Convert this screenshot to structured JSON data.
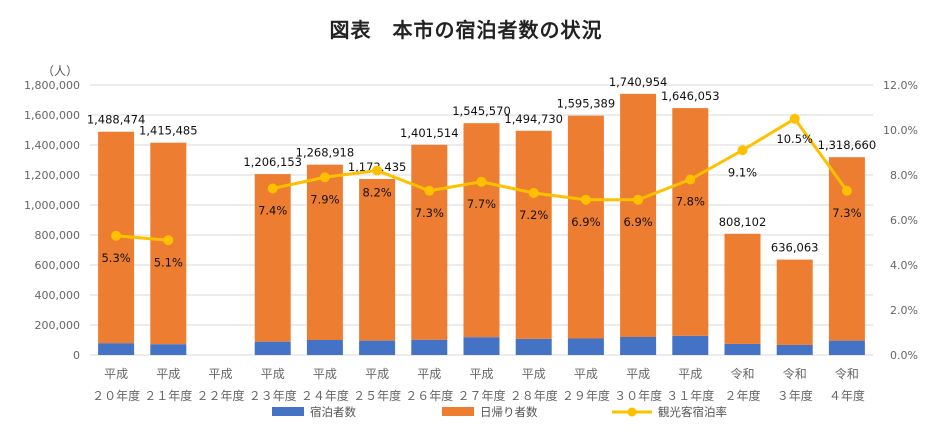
{
  "title": "図表　本市の宿泊者数の状況",
  "chart_data": {
    "type": "bar",
    "stacked": true,
    "unit_label": "（人）",
    "categories": [
      [
        "平成",
        "２０年度"
      ],
      [
        "平成",
        "２１年度"
      ],
      [
        "平成",
        "２２年度"
      ],
      [
        "平成",
        "２３年度"
      ],
      [
        "平成",
        "２４年度"
      ],
      [
        "平成",
        "２５年度"
      ],
      [
        "平成",
        "２６年度"
      ],
      [
        "平成",
        "２７年度"
      ],
      [
        "平成",
        "２８年度"
      ],
      [
        "平成",
        "２９年度"
      ],
      [
        "平成",
        "３０年度"
      ],
      [
        "平成",
        "３１年度"
      ],
      [
        "令和",
        "２年度"
      ],
      [
        "令和",
        "３年度"
      ],
      [
        "令和",
        "４年度"
      ]
    ],
    "series": [
      {
        "name": "宿泊者数",
        "axis": "left",
        "color": "#4472C4",
        "values": [
          79000,
          72000,
          null,
          89000,
          100000,
          96000,
          102000,
          119000,
          108000,
          110000,
          120000,
          128000,
          74000,
          67000,
          96000
        ]
      },
      {
        "name": "日帰り者数",
        "axis": "left",
        "color": "#ED7D31",
        "values": [
          1409474,
          1343485,
          null,
          1117153,
          1168918,
          1077435,
          1299514,
          1426570,
          1386730,
          1485389,
          1620954,
          1518053,
          734102,
          569063,
          1222660
        ]
      },
      {
        "name": "観光客宿泊率",
        "axis": "right",
        "type": "line",
        "color": "#FFC000",
        "values": [
          5.3,
          5.1,
          null,
          7.4,
          7.9,
          8.2,
          7.3,
          7.7,
          7.2,
          6.9,
          6.9,
          7.8,
          9.1,
          10.5,
          7.3
        ]
      }
    ],
    "total_labels": [
      "1,488,474",
      "1,415,485",
      "",
      "1,206,153",
      "1,268,918",
      "1,173,435",
      "1,401,514",
      "1,545,570",
      "1,494,730",
      "1,595,389",
      "1,740,954",
      "1,646,053",
      "808,102",
      "636,063",
      "1,318,660"
    ],
    "rate_labels": [
      "5.3%",
      "5.1%",
      "",
      "7.4%",
      "7.9%",
      "8.2%",
      "7.3%",
      "7.7%",
      "7.2%",
      "6.9%",
      "6.9%",
      "7.8%",
      "9.1%",
      "10.5%",
      "7.3%"
    ],
    "ylim_left": [
      0,
      1800000
    ],
    "yticks_left": [
      "0",
      "200,000",
      "400,000",
      "600,000",
      "800,000",
      "1,000,000",
      "1,200,000",
      "1,400,000",
      "1,600,000",
      "1,800,000"
    ],
    "ylim_right": [
      0,
      12
    ],
    "yticks_right": [
      "0.0%",
      "2.0%",
      "4.0%",
      "6.0%",
      "8.0%",
      "10.0%",
      "12.0%"
    ],
    "grid": true,
    "legend_position": "bottom"
  }
}
